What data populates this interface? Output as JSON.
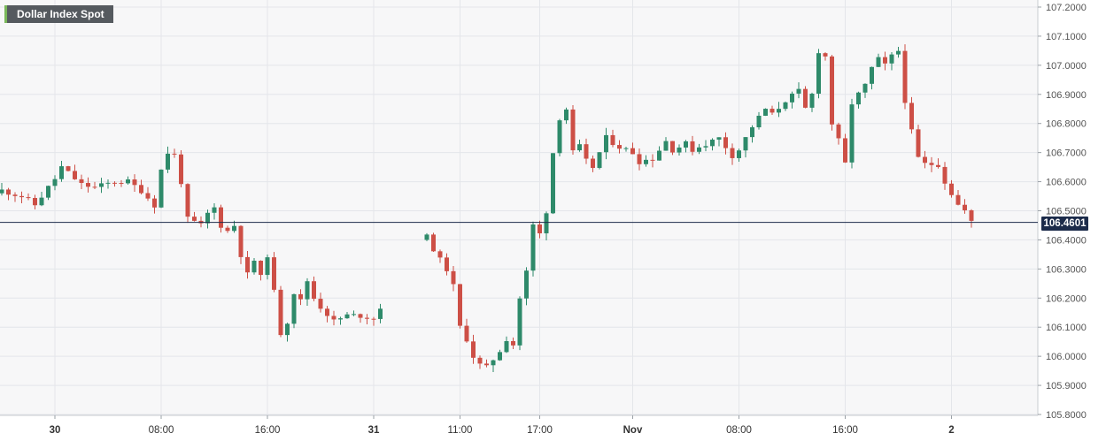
{
  "legend": {
    "label": "Dollar Index Spot"
  },
  "last_price": {
    "value": 106.4601,
    "label": "106.4601"
  },
  "colors": {
    "up": "#2e8a6a",
    "down": "#cd4f46",
    "price_line": "#1c2b4a",
    "grid": "#e4e6ea"
  },
  "chart_data": {
    "type": "candlestick",
    "title": "",
    "xlabel": "",
    "ylabel": "",
    "ylim": [
      105.8,
      107.2
    ],
    "yticks": [
      "105.8000",
      "105.9000",
      "106.0000",
      "106.1000",
      "106.2000",
      "106.3000",
      "106.4000",
      "106.5000",
      "106.6000",
      "106.7000",
      "106.8000",
      "106.9000",
      "107.0000",
      "107.1000",
      "107.2000"
    ],
    "xticks": [
      {
        "label": "30",
        "bar": 8,
        "bold": true
      },
      {
        "label": "08:00",
        "bar": 24,
        "bold": false
      },
      {
        "label": "16:00",
        "bar": 40,
        "bold": false
      },
      {
        "label": "31",
        "bar": 56,
        "bold": true
      },
      {
        "label": "11:00",
        "bar": 69,
        "bold": false
      },
      {
        "label": "17:00",
        "bar": 81,
        "bold": false
      },
      {
        "label": "Nov",
        "bar": 95,
        "bold": true
      },
      {
        "label": "08:00",
        "bar": 111,
        "bold": false
      },
      {
        "label": "16:00",
        "bar": 127,
        "bold": false
      },
      {
        "label": "2",
        "bar": 143,
        "bold": true
      }
    ],
    "gap_after_bar": 57,
    "grid": true,
    "legend_position": "top-left"
  }
}
